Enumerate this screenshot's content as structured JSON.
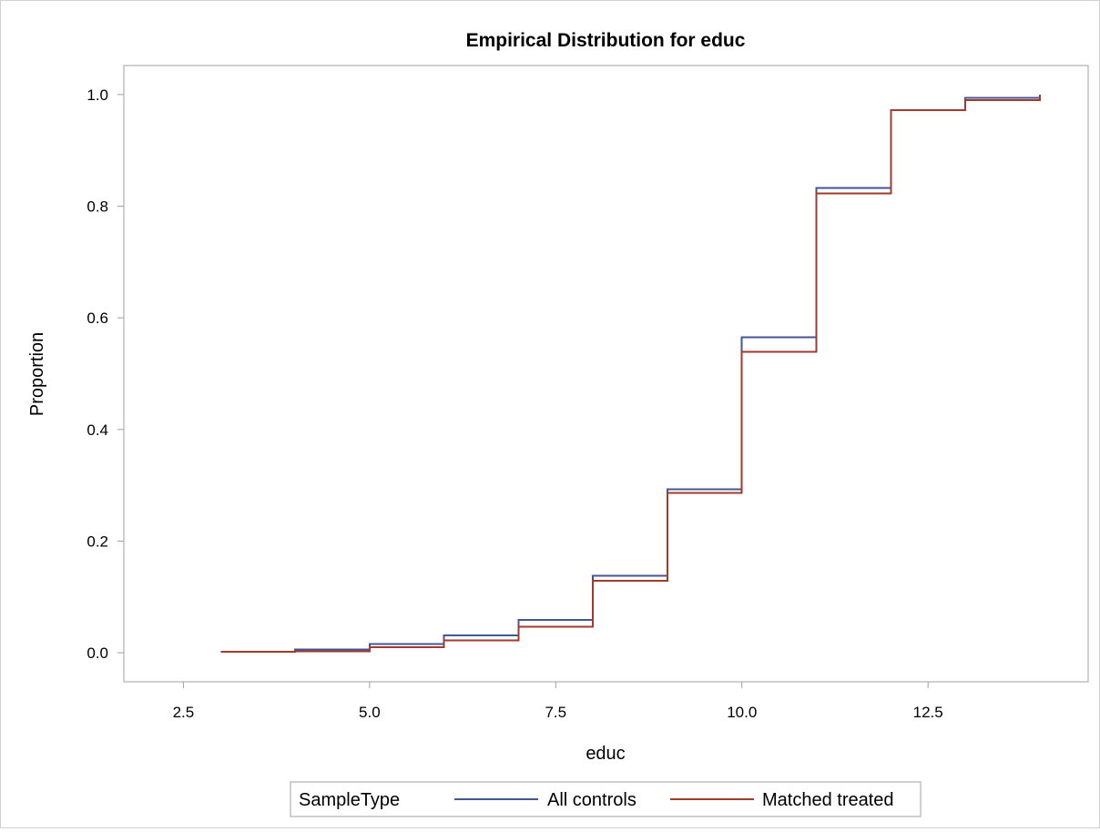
{
  "chart_data": {
    "type": "line",
    "step": "post",
    "title": "Empirical Distribution for educ",
    "xlabel": "educ",
    "ylabel": "Proportion",
    "xlim": [
      1.7,
      14.65
    ],
    "ylim": [
      -0.052,
      1.052
    ],
    "xticks": [
      2.5,
      5.0,
      7.5,
      10.0,
      12.5
    ],
    "xtick_labels": [
      "2.5",
      "5.0",
      "7.5",
      "10.0",
      "12.5"
    ],
    "yticks": [
      0.0,
      0.2,
      0.4,
      0.6,
      0.8,
      1.0
    ],
    "ytick_labels": [
      "0.0",
      "0.2",
      "0.4",
      "0.6",
      "0.8",
      "1.0"
    ],
    "grid": false,
    "legend": {
      "title": "SampleType",
      "placement": "bottom-center"
    },
    "series": [
      {
        "name": "All controls",
        "color": "#445694",
        "x": [
          3,
          4,
          5,
          6,
          7,
          8,
          9,
          10,
          11,
          12,
          13,
          14
        ],
        "y": [
          0.002,
          0.006,
          0.016,
          0.031,
          0.059,
          0.138,
          0.293,
          0.565,
          0.833,
          0.972,
          0.994,
          1.0
        ]
      },
      {
        "name": "Matched treated",
        "color": "#A23A2E",
        "x": [
          3,
          4,
          5,
          6,
          7,
          8,
          9,
          10,
          11,
          12,
          13,
          14
        ],
        "y": [
          0.002,
          0.003,
          0.01,
          0.022,
          0.047,
          0.129,
          0.286,
          0.539,
          0.823,
          0.972,
          0.99,
          1.0
        ]
      }
    ]
  }
}
